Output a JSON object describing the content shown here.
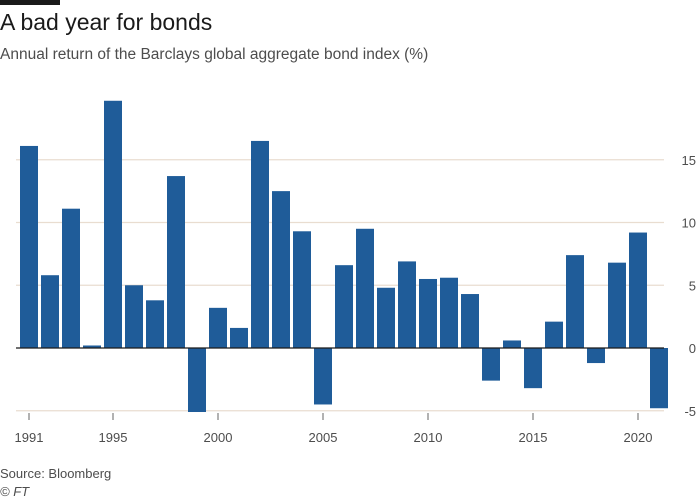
{
  "header": {
    "title": "A bad year for bonds",
    "subtitle": "Annual return of the Barclays global aggregate bond index (%)"
  },
  "footer": {
    "source": "Source: Bloomberg",
    "credit": "© FT"
  },
  "colors": {
    "bar": "#1f5c99",
    "grid": "#e9ddd0",
    "zero_line": "#1a1a1a",
    "text": "#4d4d4d"
  },
  "chart_data": {
    "type": "bar",
    "title": "A bad year for bonds",
    "subtitle": "Annual return of the Barclays global aggregate bond index (%)",
    "xlabel": "",
    "ylabel": "",
    "categories": [
      1991,
      1992,
      1993,
      1994,
      1995,
      1996,
      1997,
      1998,
      1999,
      2000,
      2001,
      2002,
      2003,
      2004,
      2005,
      2006,
      2007,
      2008,
      2009,
      2010,
      2011,
      2012,
      2013,
      2014,
      2015,
      2016,
      2017,
      2018,
      2019,
      2020,
      2021
    ],
    "values": [
      16.1,
      5.8,
      11.1,
      0.2,
      19.7,
      5.0,
      3.8,
      13.7,
      -5.1,
      3.2,
      1.6,
      16.5,
      12.5,
      9.3,
      -4.5,
      6.6,
      9.5,
      4.8,
      6.9,
      5.5,
      5.6,
      4.3,
      -2.6,
      0.6,
      -3.2,
      2.1,
      7.4,
      -1.2,
      6.8,
      9.2,
      -4.8
    ],
    "x_tick_labels": [
      "1991",
      "1995",
      "2000",
      "2005",
      "2010",
      "2015",
      "2020"
    ],
    "y_ticks": [
      -5,
      0,
      5,
      10,
      15
    ],
    "y_tick_labels": [
      "-5",
      "0",
      "5",
      "10",
      "15"
    ],
    "ylim": [
      -5.2,
      20
    ],
    "grid": true,
    "y_axis_side": "right",
    "legend": "none"
  }
}
